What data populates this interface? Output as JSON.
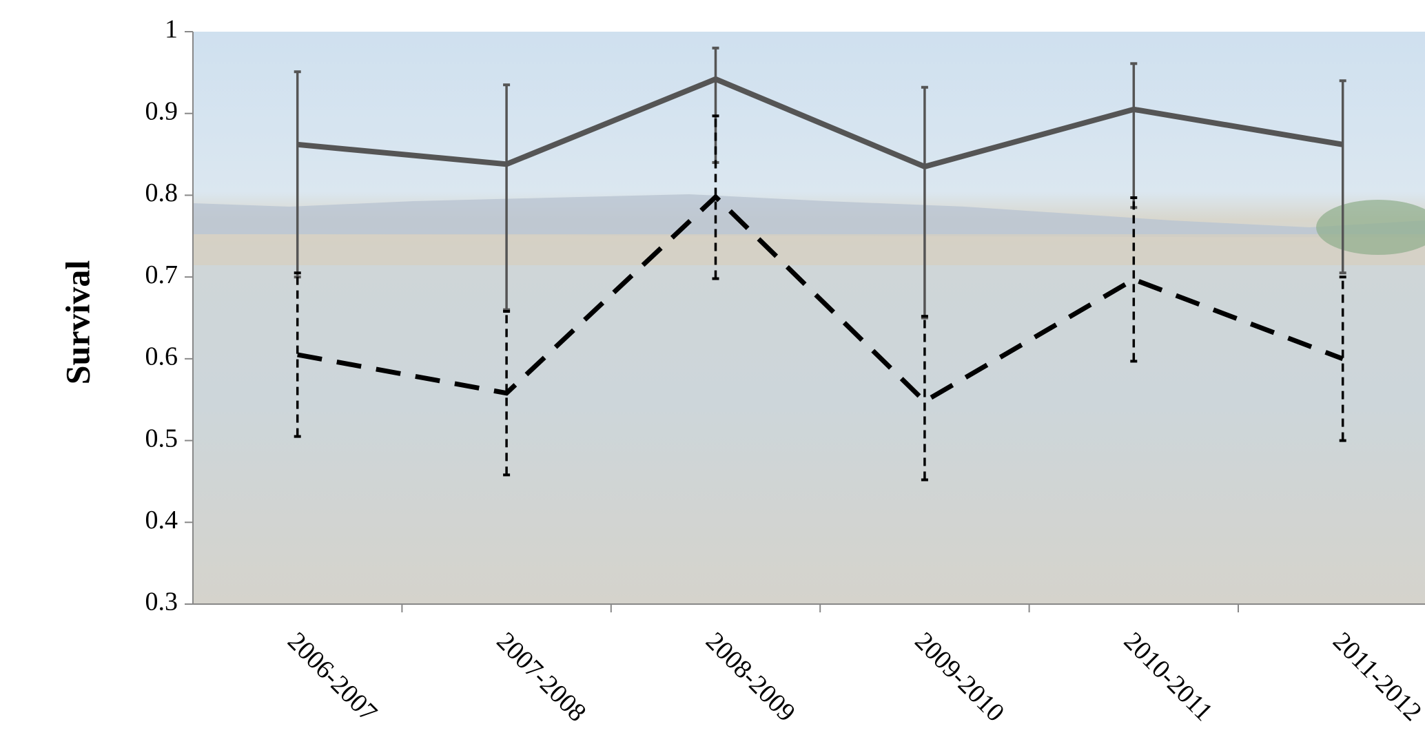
{
  "chart_data": {
    "type": "line",
    "y_label": "Survival",
    "categories": [
      "2006-2007",
      "2007-2008",
      "2008-2009",
      "2009-2010",
      "2010-2011",
      "2011-2012"
    ],
    "series": [
      {
        "color": "#555555",
        "style": "solid",
        "values": [
          0.862,
          0.838,
          0.942,
          0.835,
          0.905,
          0.862
        ],
        "error_low": [
          0.7,
          0.66,
          0.84,
          0.65,
          0.785,
          0.705
        ],
        "error_high": [
          0.951,
          0.935,
          0.98,
          0.932,
          0.961,
          0.94
        ]
      },
      {
        "color": "#000000",
        "style": "dashed",
        "values": [
          0.605,
          0.558,
          0.798,
          0.548,
          0.697,
          0.6
        ],
        "error_low": [
          0.505,
          0.458,
          0.698,
          0.452,
          0.597,
          0.5
        ],
        "error_high": [
          0.705,
          0.658,
          0.897,
          0.652,
          0.797,
          0.7
        ]
      }
    ],
    "ylim": [
      0.3,
      1
    ],
    "yticks": [
      0.3,
      0.4,
      0.5,
      0.6,
      0.7,
      0.8,
      0.9,
      1
    ]
  }
}
